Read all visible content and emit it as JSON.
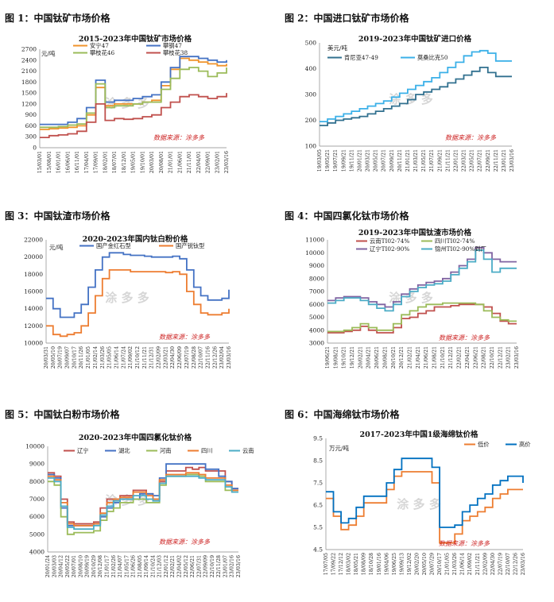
{
  "figures": [
    {
      "caption": "图 1：中国钛矿市场价格"
    },
    {
      "caption": "图 2：中国进口钛矿市场价格"
    },
    {
      "caption": "图 3：中国钛渣市场价格"
    },
    {
      "caption": "图 4：中国四氯化钛市场价格"
    },
    {
      "caption": "图 5：中国钛白粉市场价格"
    },
    {
      "caption": "图 6：中国海绵钛市场价格"
    }
  ],
  "chart_data": [
    {
      "type": "line",
      "title": "2015-2023年中国钛矿市场价格",
      "unit": "元/吨",
      "source": "数据来源：涂多多",
      "ylim": [
        0,
        2700
      ],
      "yticks": [
        "0",
        "300",
        "600",
        "900",
        "1200",
        "1500",
        "1800",
        "2100",
        "2400",
        "2700"
      ],
      "xticks": [
        "15/03/01",
        "15/08/01",
        "16/01/01",
        "16/06/01",
        "16/11/01",
        "17/04/01",
        "17/09/01",
        "18/02/01",
        "18/07/01",
        "18/12/01",
        "19/05/01",
        "19/10/01",
        "20/03/01",
        "20/08/01",
        "21/01/01",
        "21/06/01",
        "21/11/01",
        "22/04/01",
        "22/09/01",
        "23/02/01",
        "23/03/16"
      ],
      "series": [
        {
          "name": "安宁47",
          "color": "#f0932b",
          "values": [
            500,
            520,
            540,
            560,
            600,
            900,
            1650,
            1150,
            1200,
            1200,
            1200,
            1250,
            1300,
            1700,
            2150,
            2450,
            2400,
            2350,
            2300,
            2250,
            2300
          ]
        },
        {
          "name": "攀钢47",
          "color": "#4472c4",
          "values": [
            640,
            640,
            640,
            700,
            800,
            1100,
            1850,
            1250,
            1300,
            1300,
            1350,
            1400,
            1450,
            1800,
            2200,
            2500,
            2500,
            2450,
            2400,
            2350,
            2400
          ]
        },
        {
          "name": "攀枝花46",
          "color": "#9bbb59",
          "values": [
            560,
            560,
            580,
            620,
            650,
            950,
            1750,
            1100,
            1150,
            1150,
            1200,
            1250,
            1250,
            1600,
            1900,
            2150,
            2200,
            2100,
            1950,
            2050,
            2200
          ]
        },
        {
          "name": "攀枝花38",
          "color": "#c0504d",
          "values": [
            280,
            330,
            350,
            380,
            450,
            700,
            1200,
            750,
            800,
            780,
            800,
            850,
            900,
            1100,
            1250,
            1400,
            1450,
            1400,
            1350,
            1400,
            1500
          ]
        }
      ]
    },
    {
      "type": "line",
      "title": "2019-2023年中国钛矿进口价格",
      "unit": "美元/吨",
      "source": "数据来源：涂多多",
      "ylim": [
        100,
        500
      ],
      "yticks": [
        "100",
        "200",
        "300",
        "400",
        "500"
      ],
      "xticks": [
        "19/03/05",
        "19/05/21",
        "19/07/21",
        "19/09/21",
        "19/11/21",
        "20/01/21",
        "20/03/21",
        "20/05/21",
        "20/07/21",
        "20/09/21",
        "20/11/21",
        "21/01/21",
        "21/03/21",
        "21/05/21",
        "21/07/21",
        "21/09/21",
        "21/11/21",
        "22/01/21",
        "22/03/21",
        "22/05/21",
        "22/07/21",
        "22/09/21",
        "22/11/21",
        "23/01/21",
        "23/03/16"
      ],
      "series": [
        {
          "name": "肯尼亚47-49",
          "color": "#31708f",
          "values": [
            180,
            190,
            200,
            205,
            210,
            215,
            225,
            235,
            245,
            255,
            265,
            280,
            300,
            310,
            320,
            330,
            345,
            360,
            375,
            390,
            405,
            385,
            370,
            370,
            370
          ]
        },
        {
          "name": "莫桑比克50",
          "color": "#3bb0e8",
          "values": [
            195,
            205,
            215,
            225,
            235,
            245,
            255,
            265,
            275,
            290,
            305,
            320,
            335,
            350,
            365,
            385,
            405,
            425,
            450,
            465,
            470,
            460,
            430,
            430,
            430
          ]
        }
      ]
    },
    {
      "type": "line",
      "title": "2020-2023年国内钛白粉价格",
      "unit": "元/吨",
      "source": "数据来源：涂多多",
      "ylim": [
        10000,
        22000
      ],
      "yticks": [
        "10000",
        "12000",
        "14000",
        "16000",
        "18000",
        "20000",
        "22000"
      ],
      "xticks": [
        "20/03/31",
        "20/05/10",
        "20/07/19",
        "20/09/07",
        "20/10/17",
        "20/11/26",
        "21/01/05",
        "21/02/14",
        "21/03/26",
        "21/05/05",
        "21/06/14",
        "21/07/24",
        "21/09/02",
        "21/10/12",
        "21/11/21",
        "21/12/31",
        "22/02/09",
        "22/03/21",
        "22/04/30",
        "22/06/09",
        "22/07/19",
        "22/08/28",
        "22/10/07",
        "22/11/16",
        "22/12/26",
        "23/02/04",
        "23/03/16"
      ],
      "series": [
        {
          "name": "国产金红石型",
          "color": "#4472c4",
          "values": [
            15200,
            14000,
            13000,
            13000,
            13500,
            14500,
            16500,
            18500,
            20000,
            20500,
            20500,
            20300,
            20200,
            20200,
            20100,
            20000,
            20000,
            20000,
            20100,
            19800,
            18500,
            16500,
            15500,
            15000,
            15000,
            15200,
            16200
          ]
        },
        {
          "name": "国产锐钛型",
          "color": "#ed7d31",
          "values": [
            12000,
            11000,
            10800,
            11000,
            11200,
            12000,
            13500,
            15500,
            17500,
            18500,
            18500,
            18500,
            18300,
            18300,
            18300,
            18300,
            18300,
            18200,
            18300,
            18000,
            16000,
            14500,
            13500,
            13300,
            13300,
            13500,
            14000
          ]
        }
      ]
    },
    {
      "type": "line",
      "title": "2019-2023年中国钛渣市场价格",
      "source": "数据来源：涂多多",
      "ylim": [
        3000,
        11000
      ],
      "yticks": [
        "3000",
        "4000",
        "5000",
        "6000",
        "7000",
        "8000",
        "9000",
        "10000",
        "11000"
      ],
      "xticks": [
        "19/06/21",
        "19/08/21",
        "19/10/21",
        "19/12/21",
        "20/02/21",
        "20/04/21",
        "20/06/21",
        "20/08/21",
        "20/10/21",
        "20/12/21",
        "21/02/21",
        "21/04/21",
        "21/06/21",
        "21/08/21",
        "21/10/21",
        "21/12/21",
        "22/02/21",
        "22/04/21",
        "22/06/21",
        "22/08/21",
        "22/10/21",
        "22/12/21",
        "23/02/21",
        "23/03/16"
      ],
      "series": [
        {
          "name": "云南TI02-74%",
          "color": "#c0504d",
          "values": [
            3800,
            3800,
            3900,
            4000,
            4300,
            4000,
            3800,
            3800,
            4200,
            4900,
            5000,
            5300,
            5500,
            5800,
            5800,
            5900,
            6000,
            6000,
            6000,
            5800,
            5300,
            4700,
            4500,
            4500
          ]
        },
        {
          "name": "四川TI02-74%",
          "color": "#9bbb59",
          "values": [
            3900,
            3900,
            4000,
            4200,
            4500,
            4200,
            4000,
            4000,
            4500,
            5200,
            5500,
            5800,
            6000,
            6000,
            6100,
            6100,
            6100,
            6100,
            6000,
            5500,
            5000,
            4800,
            4700,
            4700
          ]
        },
        {
          "name": "辽宁TI02-90%",
          "color": "#8064a2",
          "values": [
            6300,
            6500,
            6600,
            6600,
            6500,
            6200,
            6000,
            5800,
            6200,
            6800,
            7200,
            7500,
            7700,
            7800,
            8000,
            8500,
            9000,
            9500,
            10400,
            10000,
            9500,
            9300,
            9300,
            9300
          ]
        },
        {
          "name": "锦州TI02-90%到厂",
          "color": "#4bacc6",
          "values": [
            6100,
            6300,
            6500,
            6500,
            6300,
            6000,
            5700,
            5500,
            6000,
            6600,
            7000,
            7300,
            7500,
            7600,
            7800,
            8300,
            8800,
            9300,
            10200,
            9500,
            8500,
            8800,
            8800,
            8800
          ]
        }
      ]
    },
    {
      "type": "line",
      "title": "2020-2023年中国四氯化钛价格",
      "source": "数据来源：涂多多",
      "ylim": [
        4000,
        10000
      ],
      "yticks": [
        "4000",
        "5000",
        "6000",
        "7000",
        "8000",
        "9000",
        "10000"
      ],
      "xticks": [
        "20/01/24",
        "20/03/03",
        "20/04/12",
        "20/05/22",
        "20/07/01",
        "20/08/10",
        "20/09/19",
        "20/10/29",
        "20/12/08",
        "21/01/17",
        "21/02/26",
        "21/04/07",
        "21/05/17",
        "21/06/26",
        "21/08/05",
        "21/09/14",
        "21/10/24",
        "21/12/03",
        "22/01/12",
        "22/02/21",
        "22/04/02",
        "22/05/12",
        "22/06/21",
        "22/07/31",
        "22/09/09",
        "22/10/19",
        "22/11/28",
        "23/01/07",
        "23/02/16",
        "23/03/16"
      ],
      "series": [
        {
          "name": "辽宁",
          "color": "#c0504d",
          "values": [
            8500,
            8300,
            7000,
            5700,
            5600,
            5600,
            5600,
            5700,
            6500,
            7000,
            7000,
            7200,
            7200,
            7500,
            7500,
            7300,
            7000,
            8000,
            8600,
            8600,
            8600,
            8800,
            8700,
            8800,
            8600,
            8600,
            8600,
            8000,
            7600,
            7600
          ]
        },
        {
          "name": "湖北",
          "color": "#4472c4",
          "values": [
            8400,
            8200,
            6500,
            5500,
            5500,
            5500,
            5500,
            5600,
            6000,
            6500,
            6800,
            7000,
            7000,
            7000,
            7300,
            7300,
            7200,
            8200,
            9000,
            9000,
            9000,
            9000,
            9000,
            9000,
            8700,
            8700,
            8300,
            8000,
            7600,
            7600
          ]
        },
        {
          "name": "河南",
          "color": "#9bbb59",
          "values": [
            8000,
            7800,
            6000,
            5000,
            5100,
            5100,
            5100,
            5200,
            5800,
            6300,
            6500,
            6800,
            6800,
            7000,
            7000,
            6800,
            6800,
            7800,
            8300,
            8300,
            8300,
            8400,
            8400,
            8300,
            8000,
            8000,
            8000,
            7500,
            7500,
            7500
          ]
        },
        {
          "name": "四川",
          "color": "#ed7d31",
          "values": [
            8300,
            8100,
            6800,
            5600,
            5500,
            5500,
            5500,
            5600,
            6200,
            6800,
            7000,
            7100,
            7100,
            7400,
            7400,
            7200,
            7000,
            8100,
            8400,
            8400,
            8400,
            8500,
            8500,
            8400,
            8200,
            8200,
            8200,
            7800,
            7500,
            7500
          ]
        },
        {
          "name": "云南",
          "color": "#4bacc6",
          "values": [
            8200,
            8000,
            6600,
            5400,
            5300,
            5300,
            5300,
            5500,
            6100,
            6600,
            6900,
            7000,
            7000,
            7200,
            7200,
            7000,
            6900,
            7900,
            8300,
            8300,
            8300,
            8300,
            8300,
            8200,
            8100,
            8100,
            8100,
            7700,
            7400,
            7400
          ]
        }
      ]
    },
    {
      "type": "line",
      "title": "2017-2023年中国1级海绵钛价格",
      "unit": "万元/吨",
      "source": "数据来源：涂多多",
      "ylim": [
        4.5,
        9.5
      ],
      "yticks": [
        "4.5",
        "5.5",
        "6.5",
        "7.5",
        "8.5",
        "9.5"
      ],
      "xticks": [
        "17/07/05",
        "17/09/22",
        "17/12/12",
        "18/03/02",
        "18/05/21",
        "18/08/09",
        "18/10/28",
        "19/01/16",
        "19/04/06",
        "19/06/25",
        "19/09/13",
        "19/12/02",
        "20/02/20",
        "20/05/10",
        "20/07/29",
        "20/10/17",
        "21/01/05",
        "21/03/26",
        "21/06/14",
        "21/09/02",
        "21/11/21",
        "22/02/09",
        "22/04/30",
        "22/07/19",
        "22/10/07",
        "22/12/26",
        "23/03/16"
      ],
      "series": [
        {
          "name": "低价",
          "color": "#ed7d31",
          "values": [
            6.8,
            6.0,
            5.4,
            5.6,
            6.0,
            6.6,
            6.6,
            6.6,
            7.2,
            7.8,
            8.0,
            8.0,
            8.0,
            8.0,
            7.5,
            4.8,
            4.8,
            5.2,
            5.8,
            6.0,
            6.2,
            6.4,
            6.8,
            7.0,
            7.2,
            7.2,
            7.2
          ]
        },
        {
          "name": "高价",
          "color": "#0070c0",
          "values": [
            7.1,
            6.2,
            5.7,
            5.9,
            6.4,
            6.9,
            6.9,
            6.9,
            7.5,
            8.1,
            8.6,
            8.6,
            8.6,
            8.6,
            8.2,
            5.5,
            5.5,
            5.6,
            6.2,
            6.5,
            6.8,
            7.0,
            7.4,
            7.6,
            7.8,
            7.8,
            7.5
          ]
        }
      ]
    }
  ]
}
